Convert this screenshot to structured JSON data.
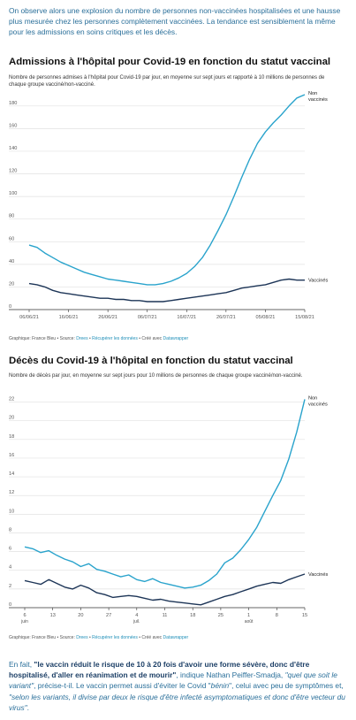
{
  "intro_text": "On observe alors une explosion du nombre de personnes non-vaccinées hospitalisées et une hausse plus mesurée chez les personnes complètement vaccinées. La tendance est sensiblement la même pour les admissions en soins critiques et les décès.",
  "credits": {
    "prefix": "Graphique: France Bleu • Source: ",
    "source": "Drees",
    "sep1": " • ",
    "get_data": "Récupérer les données",
    "sep2": " • Créé avec ",
    "tool": "Datawrapper"
  },
  "outro": {
    "p1": "En fait, ",
    "quote1": "\"le vaccin réduit le risque de 10 à 20 fois d'avoir une forme sévère, donc d'être hospitalisé, d'aller en réanimation et de mourir\"",
    "p2": ", indique Nathan Peiffer-Smadja, ",
    "quote2": "\"quel que soit le variant\"",
    "p3": ", précise-t-il. Le vaccin permet aussi d'éviter le Covid \"",
    "quote3": "bénin",
    "p4": "\", celui avec peu de symptômes et, ",
    "quote4": "\"selon les variants, il divise par deux le risque d'être infecté asymptomatiques et donc d'être vecteur du virus\"",
    "p5": "."
  },
  "colors": {
    "unvaccinated": "#29a3cc",
    "vaccinated": "#1d3557",
    "grid": "#e2e2e2",
    "axis": "#555555"
  },
  "chart_data": [
    {
      "type": "line",
      "title": "Admissions à l'hôpital pour Covid-19 en fonction du statut vaccinal",
      "subtitle": "Nombre de personnes admises à l'hôpital pour Covid-19 par jour, en moyenne sur sept jours et rapporté à 10 millions de personnes de chaque groupe vacciné/non-vacciné.",
      "x_range": [
        "2021-06-06",
        "2021-08-15"
      ],
      "ylim": [
        0,
        190
      ],
      "grid": true,
      "y_ticks": [
        0,
        20,
        40,
        60,
        80,
        100,
        120,
        140,
        160,
        180
      ],
      "x_ticks": [
        {
          "date": "2021-06-06",
          "label": "06/06/21"
        },
        {
          "date": "2021-06-16",
          "label": "16/06/21"
        },
        {
          "date": "2021-06-26",
          "label": "26/06/21"
        },
        {
          "date": "2021-07-06",
          "label": "06/07/21"
        },
        {
          "date": "2021-07-16",
          "label": "16/07/21"
        },
        {
          "date": "2021-07-26",
          "label": "26/07/21"
        },
        {
          "date": "2021-08-05",
          "label": "05/08/21"
        },
        {
          "date": "2021-08-15",
          "label": "15/08/21"
        }
      ],
      "series": [
        {
          "name": "Non vaccinés",
          "label_lines": [
            "Non",
            "vaccinés"
          ],
          "points": [
            [
              "2021-06-06",
              57
            ],
            [
              "2021-06-08",
              55
            ],
            [
              "2021-06-10",
              50
            ],
            [
              "2021-06-12",
              46
            ],
            [
              "2021-06-14",
              42
            ],
            [
              "2021-06-16",
              39
            ],
            [
              "2021-06-18",
              36
            ],
            [
              "2021-06-20",
              33
            ],
            [
              "2021-06-22",
              31
            ],
            [
              "2021-06-24",
              29
            ],
            [
              "2021-06-26",
              27
            ],
            [
              "2021-06-28",
              26
            ],
            [
              "2021-06-30",
              25
            ],
            [
              "2021-07-02",
              24
            ],
            [
              "2021-07-04",
              23
            ],
            [
              "2021-07-06",
              22
            ],
            [
              "2021-07-08",
              22
            ],
            [
              "2021-07-10",
              23
            ],
            [
              "2021-07-12",
              25
            ],
            [
              "2021-07-14",
              28
            ],
            [
              "2021-07-16",
              32
            ],
            [
              "2021-07-18",
              38
            ],
            [
              "2021-07-20",
              46
            ],
            [
              "2021-07-22",
              57
            ],
            [
              "2021-07-24",
              70
            ],
            [
              "2021-07-26",
              84
            ],
            [
              "2021-07-28",
              100
            ],
            [
              "2021-07-30",
              117
            ],
            [
              "2021-08-01",
              133
            ],
            [
              "2021-08-03",
              147
            ],
            [
              "2021-08-05",
              157
            ],
            [
              "2021-08-07",
              165
            ],
            [
              "2021-08-09",
              172
            ],
            [
              "2021-08-11",
              180
            ],
            [
              "2021-08-13",
              187
            ],
            [
              "2021-08-15",
              190
            ]
          ]
        },
        {
          "name": "Vaccinés",
          "label_lines": [
            "Vaccinés"
          ],
          "points": [
            [
              "2021-06-06",
              23
            ],
            [
              "2021-06-08",
              22
            ],
            [
              "2021-06-10",
              20
            ],
            [
              "2021-06-12",
              17
            ],
            [
              "2021-06-14",
              15
            ],
            [
              "2021-06-16",
              14
            ],
            [
              "2021-06-18",
              13
            ],
            [
              "2021-06-20",
              12
            ],
            [
              "2021-06-22",
              11
            ],
            [
              "2021-06-24",
              10
            ],
            [
              "2021-06-26",
              10
            ],
            [
              "2021-06-28",
              9
            ],
            [
              "2021-06-30",
              9
            ],
            [
              "2021-07-02",
              8
            ],
            [
              "2021-07-04",
              8
            ],
            [
              "2021-07-06",
              7
            ],
            [
              "2021-07-08",
              7
            ],
            [
              "2021-07-10",
              7
            ],
            [
              "2021-07-12",
              8
            ],
            [
              "2021-07-14",
              9
            ],
            [
              "2021-07-16",
              10
            ],
            [
              "2021-07-18",
              11
            ],
            [
              "2021-07-20",
              12
            ],
            [
              "2021-07-22",
              13
            ],
            [
              "2021-07-24",
              14
            ],
            [
              "2021-07-26",
              15
            ],
            [
              "2021-07-28",
              17
            ],
            [
              "2021-07-30",
              19
            ],
            [
              "2021-08-01",
              20
            ],
            [
              "2021-08-03",
              21
            ],
            [
              "2021-08-05",
              22
            ],
            [
              "2021-08-07",
              24
            ],
            [
              "2021-08-09",
              26
            ],
            [
              "2021-08-11",
              27
            ],
            [
              "2021-08-13",
              26
            ],
            [
              "2021-08-15",
              26
            ]
          ]
        }
      ]
    },
    {
      "type": "line",
      "title": "Décès du Covid-19 à l'hôpital en fonction du statut vaccinal",
      "subtitle": "Nombre de décès par jour, en moyenne sur sept jours pour 10 millions de personnes de chaque groupe vacciné/non-vacciné.",
      "x_range": [
        "2021-06-06",
        "2021-08-15"
      ],
      "ylim": [
        0,
        23
      ],
      "grid": true,
      "y_ticks": [
        0,
        2,
        4,
        6,
        8,
        10,
        12,
        14,
        16,
        18,
        20,
        22
      ],
      "x_ticks": [
        {
          "date": "2021-06-06",
          "label": "6",
          "sub": "juin"
        },
        {
          "date": "2021-06-13",
          "label": "13"
        },
        {
          "date": "2021-06-20",
          "label": "20"
        },
        {
          "date": "2021-06-27",
          "label": "27"
        },
        {
          "date": "2021-07-04",
          "label": "4",
          "sub": "juil."
        },
        {
          "date": "2021-07-11",
          "label": "11"
        },
        {
          "date": "2021-07-18",
          "label": "18"
        },
        {
          "date": "2021-07-25",
          "label": "25"
        },
        {
          "date": "2021-08-01",
          "label": "1",
          "sub": "août"
        },
        {
          "date": "2021-08-08",
          "label": "8"
        },
        {
          "date": "2021-08-15",
          "label": "15"
        }
      ],
      "series": [
        {
          "name": "Non vaccinés",
          "label_lines": [
            "Non",
            "vaccinés"
          ],
          "points": [
            [
              "2021-06-06",
              6.5
            ],
            [
              "2021-06-08",
              6.3
            ],
            [
              "2021-06-10",
              5.9
            ],
            [
              "2021-06-12",
              6.1
            ],
            [
              "2021-06-14",
              5.6
            ],
            [
              "2021-06-16",
              5.2
            ],
            [
              "2021-06-18",
              4.9
            ],
            [
              "2021-06-20",
              4.4
            ],
            [
              "2021-06-22",
              4.7
            ],
            [
              "2021-06-24",
              4.1
            ],
            [
              "2021-06-26",
              3.9
            ],
            [
              "2021-06-28",
              3.6
            ],
            [
              "2021-06-30",
              3.3
            ],
            [
              "2021-07-02",
              3.5
            ],
            [
              "2021-07-04",
              3.0
            ],
            [
              "2021-07-06",
              2.8
            ],
            [
              "2021-07-08",
              3.1
            ],
            [
              "2021-07-10",
              2.7
            ],
            [
              "2021-07-12",
              2.5
            ],
            [
              "2021-07-14",
              2.3
            ],
            [
              "2021-07-16",
              2.1
            ],
            [
              "2021-07-18",
              2.2
            ],
            [
              "2021-07-20",
              2.4
            ],
            [
              "2021-07-22",
              2.9
            ],
            [
              "2021-07-24",
              3.6
            ],
            [
              "2021-07-26",
              4.8
            ],
            [
              "2021-07-28",
              5.3
            ],
            [
              "2021-07-30",
              6.2
            ],
            [
              "2021-08-01",
              7.3
            ],
            [
              "2021-08-03",
              8.6
            ],
            [
              "2021-08-05",
              10.3
            ],
            [
              "2021-08-07",
              12.0
            ],
            [
              "2021-08-09",
              13.6
            ],
            [
              "2021-08-11",
              15.9
            ],
            [
              "2021-08-13",
              18.8
            ],
            [
              "2021-08-15",
              22.3
            ]
          ]
        },
        {
          "name": "Vaccinés",
          "label_lines": [
            "Vaccinés"
          ],
          "points": [
            [
              "2021-06-06",
              2.9
            ],
            [
              "2021-06-08",
              2.7
            ],
            [
              "2021-06-10",
              2.5
            ],
            [
              "2021-06-12",
              3.0
            ],
            [
              "2021-06-14",
              2.6
            ],
            [
              "2021-06-16",
              2.2
            ],
            [
              "2021-06-18",
              2.0
            ],
            [
              "2021-06-20",
              2.4
            ],
            [
              "2021-06-22",
              2.1
            ],
            [
              "2021-06-24",
              1.6
            ],
            [
              "2021-06-26",
              1.4
            ],
            [
              "2021-06-28",
              1.1
            ],
            [
              "2021-06-30",
              1.2
            ],
            [
              "2021-07-02",
              1.3
            ],
            [
              "2021-07-04",
              1.2
            ],
            [
              "2021-07-06",
              1.0
            ],
            [
              "2021-07-08",
              0.8
            ],
            [
              "2021-07-10",
              0.9
            ],
            [
              "2021-07-12",
              0.7
            ],
            [
              "2021-07-14",
              0.6
            ],
            [
              "2021-07-16",
              0.5
            ],
            [
              "2021-07-18",
              0.4
            ],
            [
              "2021-07-20",
              0.3
            ],
            [
              "2021-07-22",
              0.6
            ],
            [
              "2021-07-24",
              0.9
            ],
            [
              "2021-07-26",
              1.2
            ],
            [
              "2021-07-28",
              1.4
            ],
            [
              "2021-07-30",
              1.7
            ],
            [
              "2021-08-01",
              2.0
            ],
            [
              "2021-08-03",
              2.3
            ],
            [
              "2021-08-05",
              2.5
            ],
            [
              "2021-08-07",
              2.7
            ],
            [
              "2021-08-09",
              2.6
            ],
            [
              "2021-08-11",
              3.0
            ],
            [
              "2021-08-13",
              3.3
            ],
            [
              "2021-08-15",
              3.6
            ]
          ]
        }
      ]
    }
  ]
}
